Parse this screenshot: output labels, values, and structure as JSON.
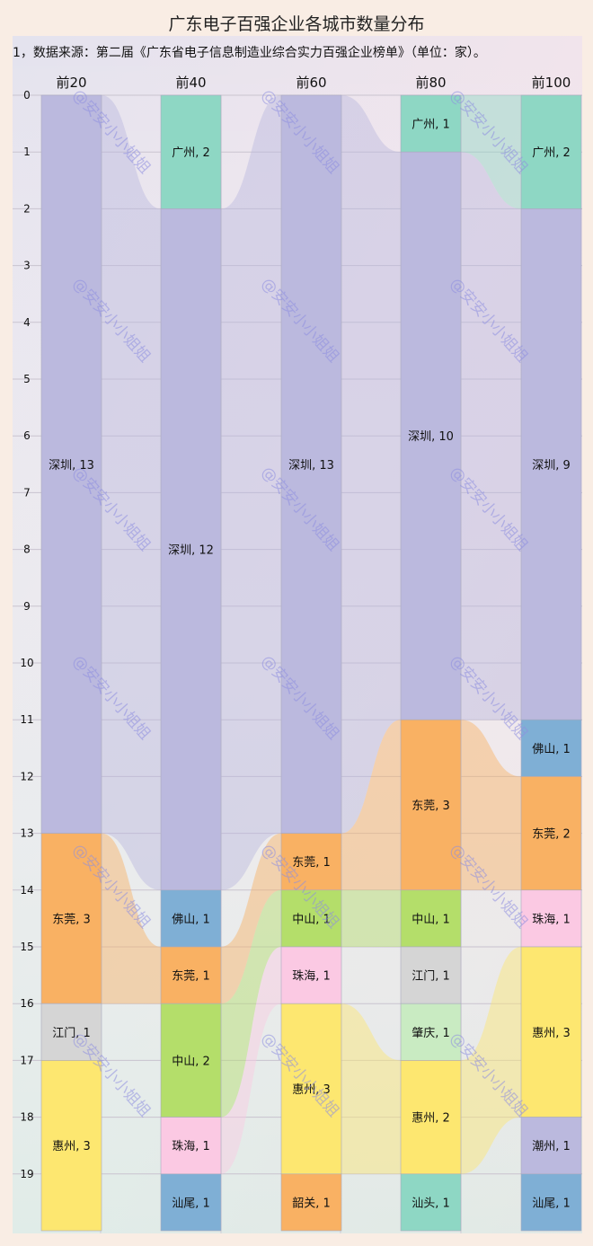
{
  "chart_data": {
    "type": "sankey",
    "title": "广东电子百强企业各城市数量分布",
    "subtitle": "1，数据来源：第二届《广东省电子信息制造业综合实力百强企业榜单》（单位：家）。",
    "watermark": "@安安小小姐姐",
    "y_ticks": [
      0,
      1,
      2,
      3,
      4,
      5,
      6,
      7,
      8,
      9,
      10,
      11,
      12,
      13,
      14,
      15,
      16,
      17,
      18,
      19
    ],
    "ylim": [
      0,
      20
    ],
    "colors": {
      "广州": "#8ed7c4",
      "深圳": "#bbb9de",
      "东莞": "#f9b163",
      "江门": "#d5d5d5",
      "惠州": "#fde770",
      "佛山": "#7fafd5",
      "中山": "#b4de6a",
      "珠海": "#fbc9e3",
      "汕尾": "#7fafd5",
      "韶关": "#f9b163",
      "肇庆": "#c9ebc2",
      "汕头": "#8ed7c4",
      "潮州": "#bbb9de"
    },
    "columns": [
      {
        "name": "前20",
        "segments": [
          {
            "city": "深圳",
            "value": 13
          },
          {
            "city": "东莞",
            "value": 3
          },
          {
            "city": "江门",
            "value": 1
          },
          {
            "city": "惠州",
            "value": 3
          }
        ]
      },
      {
        "name": "前40",
        "segments": [
          {
            "city": "广州",
            "value": 2
          },
          {
            "city": "深圳",
            "value": 12
          },
          {
            "city": "佛山",
            "value": 1
          },
          {
            "city": "东莞",
            "value": 1
          },
          {
            "city": "中山",
            "value": 2
          },
          {
            "city": "珠海",
            "value": 1
          },
          {
            "city": "汕尾",
            "value": 1
          }
        ]
      },
      {
        "name": "前60",
        "segments": [
          {
            "city": "深圳",
            "value": 13
          },
          {
            "city": "东莞",
            "value": 1
          },
          {
            "city": "中山",
            "value": 1
          },
          {
            "city": "珠海",
            "value": 1
          },
          {
            "city": "惠州",
            "value": 3
          },
          {
            "city": "韶关",
            "value": 1
          }
        ]
      },
      {
        "name": "前80",
        "segments": [
          {
            "city": "广州",
            "value": 1
          },
          {
            "city": "深圳",
            "value": 10
          },
          {
            "city": "东莞",
            "value": 3
          },
          {
            "city": "中山",
            "value": 1
          },
          {
            "city": "江门",
            "value": 1
          },
          {
            "city": "肇庆",
            "value": 1
          },
          {
            "city": "惠州",
            "value": 2
          },
          {
            "city": "汕头",
            "value": 1
          }
        ]
      },
      {
        "name": "前100",
        "segments": [
          {
            "city": "广州",
            "value": 2
          },
          {
            "city": "深圳",
            "value": 9
          },
          {
            "city": "佛山",
            "value": 1
          },
          {
            "city": "东莞",
            "value": 2
          },
          {
            "city": "珠海",
            "value": 1
          },
          {
            "city": "惠州",
            "value": 3
          },
          {
            "city": "潮州",
            "value": 1
          },
          {
            "city": "汕尾",
            "value": 1
          }
        ]
      }
    ]
  }
}
